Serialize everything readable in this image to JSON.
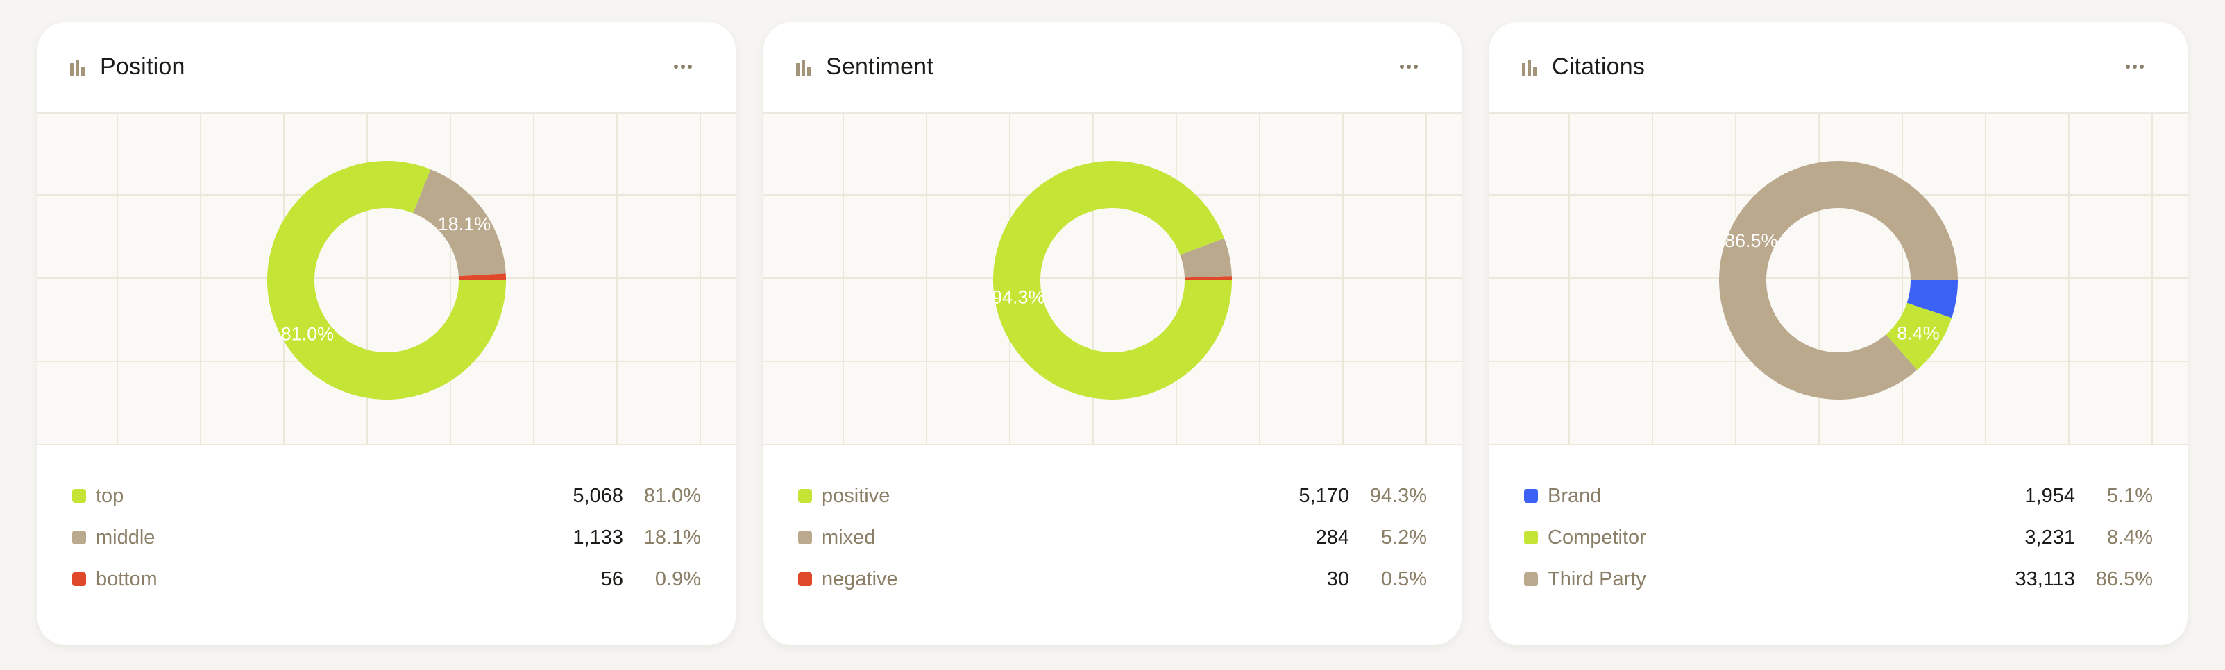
{
  "colors": {
    "lime": "#c4e535",
    "tan": "#baa98d",
    "red": "#e0482a",
    "blue": "#3b62f4",
    "icon": "#a4957a"
  },
  "icons": {
    "card_icon": "bar-chart-icon",
    "menu_icon": "more-horizontal-icon"
  },
  "chart_data": [
    {
      "type": "pie",
      "title": "Position",
      "categories": [
        "top",
        "middle",
        "bottom"
      ],
      "values": [
        5068,
        1133,
        56
      ],
      "percent_labels": [
        "81.0%",
        "18.1%",
        "0.9%"
      ],
      "colors": [
        "#c4e535",
        "#baa98d",
        "#e0482a"
      ],
      "slice_labels": [
        "81.0%",
        "18.1%",
        ""
      ],
      "legend": "bottom",
      "grid": true
    },
    {
      "type": "pie",
      "title": "Sentiment",
      "categories": [
        "positive",
        "mixed",
        "negative"
      ],
      "values": [
        5170,
        284,
        30
      ],
      "percent_labels": [
        "94.3%",
        "5.2%",
        "0.5%"
      ],
      "colors": [
        "#c4e535",
        "#baa98d",
        "#e0482a"
      ],
      "slice_labels": [
        "94.3%",
        "",
        ""
      ],
      "legend": "bottom",
      "grid": true
    },
    {
      "type": "pie",
      "title": "Citations",
      "categories": [
        "Brand",
        "Competitor",
        "Third Party"
      ],
      "values": [
        1954,
        3231,
        33113
      ],
      "percent_labels": [
        "5.1%",
        "8.4%",
        "86.5%"
      ],
      "colors": [
        "#3b62f4",
        "#c4e535",
        "#baa98d"
      ],
      "slice_labels": [
        "",
        "8.4%",
        "86.5%"
      ],
      "legend": "bottom",
      "grid": true
    }
  ]
}
